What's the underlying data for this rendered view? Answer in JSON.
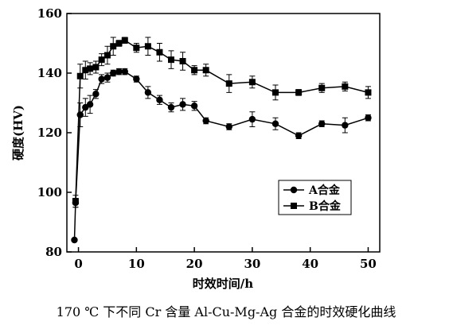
{
  "chart_data": {
    "type": "line",
    "xlabel": "时效时间/h",
    "ylabel": "硬度(HV)",
    "xlim": [
      -2,
      52
    ],
    "ylim": [
      80,
      160
    ],
    "xticks": [
      0,
      10,
      20,
      30,
      40,
      50
    ],
    "yticks": [
      80,
      100,
      120,
      140,
      160
    ],
    "grid": false,
    "legend_position": "center-right",
    "series": [
      {
        "name": "A合金",
        "marker": "circle",
        "color": "#000000",
        "x": [
          -0.7,
          -0.5,
          0.3,
          1.2,
          2,
          3,
          4,
          5,
          6,
          7,
          8,
          10,
          12,
          14,
          16,
          18,
          20,
          22,
          26,
          30,
          34,
          38,
          42,
          46,
          50
        ],
        "y": [
          84,
          96.5,
          126,
          128.5,
          129.5,
          133,
          138,
          138.5,
          140,
          140.5,
          140.5,
          138,
          133.5,
          131,
          128.5,
          129.5,
          129,
          124,
          122,
          124.5,
          123,
          119,
          123,
          122.5,
          125
        ],
        "err": [
          0.5,
          1.5,
          4,
          3,
          3,
          1.5,
          1.5,
          1.5,
          1,
          1,
          1,
          1,
          2,
          1.5,
          1.5,
          2,
          1.5,
          1,
          1,
          2.5,
          2,
          1,
          1,
          2.5,
          1
        ]
      },
      {
        "name": "B合金",
        "marker": "square",
        "color": "#000000",
        "x": [
          -0.5,
          0.3,
          1.2,
          2,
          3,
          4,
          5,
          6,
          7,
          8,
          10,
          12,
          14,
          16,
          18,
          20,
          22,
          26,
          30,
          34,
          38,
          42,
          46,
          50
        ],
        "y": [
          97,
          139,
          141,
          141.5,
          142,
          144.5,
          146,
          149,
          150,
          151,
          148.5,
          149,
          147,
          144.5,
          144,
          141,
          141,
          136.5,
          137,
          133.5,
          133.5,
          135,
          135.5,
          133.5
        ],
        "err": [
          2,
          4,
          3,
          2,
          2,
          2,
          3,
          3,
          1,
          1,
          1.5,
          3,
          3,
          3,
          3,
          1.5,
          2,
          3,
          2,
          2.5,
          1,
          1.5,
          1.5,
          2
        ]
      }
    ]
  },
  "caption": "170 ℃ 下不同 Cr 含量 Al-Cu-Mg-Ag 合金的时效硬化曲线"
}
